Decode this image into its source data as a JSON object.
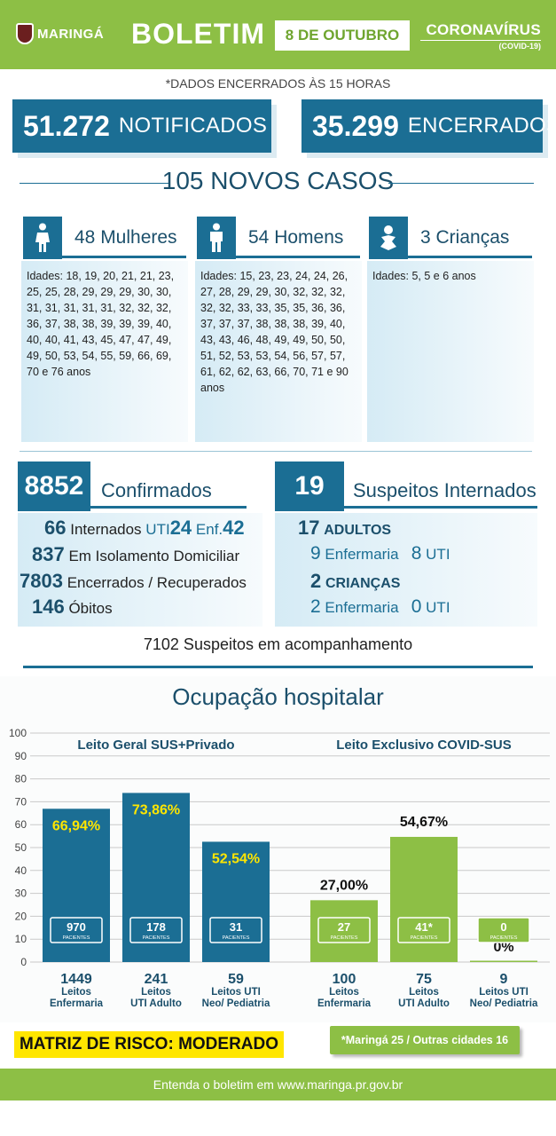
{
  "header": {
    "logo_text": "MARINGÁ",
    "title": "BOLETIM",
    "date": "8 DE OUTUBRO",
    "corona": "CORONAVÍRUS",
    "corona_sub": "(COVID-19)"
  },
  "note": "*DADOS ENCERRADOS ÀS 15 HORAS",
  "totals": {
    "notified_value": "51.272",
    "notified_label": "NOTIFICADOS",
    "closed_value": "35.299",
    "closed_label": "ENCERRADOS"
  },
  "new_cases": "105 NOVOS CASOS",
  "women": {
    "label": "48 Mulheres",
    "ages": "Idades: 18, 19, 20, 21, 21, 23, 25, 25, 28, 29, 29, 29, 30, 30, 31, 31, 31, 31, 31, 32, 32, 32, 36, 37, 38, 38, 39, 39, 39, 40, 40, 40, 41, 43, 45, 47, 47, 49, 49, 50, 53, 54, 55, 59, 66, 69, 70 e 76 anos"
  },
  "men": {
    "label": "54 Homens",
    "ages": "Idades: 15, 23, 23, 24, 24, 26, 27, 28, 29, 29, 30, 32, 32, 32, 32, 32, 33, 33, 35, 35, 36, 36, 37, 37, 37, 38, 38, 38, 39, 40, 43, 43, 46, 48, 49, 49, 50, 50, 51, 52, 53, 53, 54, 56, 57, 57, 61, 62, 62, 63, 66, 70, 71 e 90 anos"
  },
  "children": {
    "label": "3 Crianças",
    "ages": "Idades: 5, 5 e 6 anos"
  },
  "confirmed": {
    "value": "8852",
    "label": "Confirmados",
    "hosp_value": "66",
    "hosp_label": "Internados",
    "uti_label": "UTI",
    "uti_value": "24",
    "enf_label": "Enf.",
    "enf_value": "42",
    "iso_value": "837",
    "iso_label": "Em Isolamento Domiciliar",
    "rec_value": "7803",
    "rec_label": "Encerrados / Recuperados",
    "death_value": "146",
    "death_label": "Óbitos"
  },
  "suspects": {
    "value": "19",
    "label": "Suspeitos Internados",
    "adults_value": "17",
    "adults_label": "ADULTOS",
    "adults_enf_value": "9",
    "enf_label": "Enfermaria",
    "adults_uti_value": "8",
    "uti_label": "UTI",
    "kids_value": "2",
    "kids_label": "CRIANÇAS",
    "kids_enf_value": "2",
    "kids_uti_value": "0"
  },
  "follow_up": "7102 Suspeitos em acompanhamento",
  "chart_title": "Ocupação hospitalar",
  "chart_data": {
    "type": "bar",
    "ylim": [
      0,
      100
    ],
    "yticks": [
      0,
      10,
      20,
      30,
      40,
      50,
      60,
      70,
      80,
      90,
      100
    ],
    "grid": true,
    "groups": [
      {
        "title": "Leito Geral SUS+Privado",
        "color": "#1b6e94",
        "label_color": "#ffe600",
        "categories": [
          "Leitos Enfermaria",
          "Leitos UTI Adulto",
          "Leitos UTI Neo/ Pediatria"
        ],
        "cat_line1": [
          "Leitos",
          "Leitos",
          "Leitos UTI"
        ],
        "cat_line2": [
          "Enfermaria",
          "UTI Adulto",
          "Neo/ Pediatria"
        ],
        "totals": [
          "1449",
          "241",
          "59"
        ],
        "values": [
          66.94,
          73.86,
          52.54
        ],
        "value_labels": [
          "66,94%",
          "73,86%",
          "52,54%"
        ],
        "patients": [
          "970",
          "178",
          "31"
        ]
      },
      {
        "title": "Leito Exclusivo COVID-SUS",
        "color": "#8dbf45",
        "label_color": "#111111",
        "categories": [
          "Leitos Enfermaria",
          "Leitos UTI Adulto",
          "Leitos UTI Neo/ Pediatria"
        ],
        "cat_line1": [
          "Leitos",
          "Leitos",
          "Leitos UTI"
        ],
        "cat_line2": [
          "Enfermaria",
          "UTI Adulto",
          "Neo/ Pediatria"
        ],
        "totals": [
          "100",
          "75",
          "9"
        ],
        "values": [
          27.0,
          54.67,
          0
        ],
        "value_labels": [
          "27,00%",
          "54,67%",
          "0%"
        ],
        "patients": [
          "27",
          "41*",
          "0"
        ]
      }
    ],
    "patients_label": "PACIENTES"
  },
  "risk_matrix": "MATRIZ DE RISCO: MODERADO",
  "footnote": "*Maringá 25 / Outras cidades 16",
  "footer": "Entenda o boletim em www.maringa.pr.gov.br"
}
